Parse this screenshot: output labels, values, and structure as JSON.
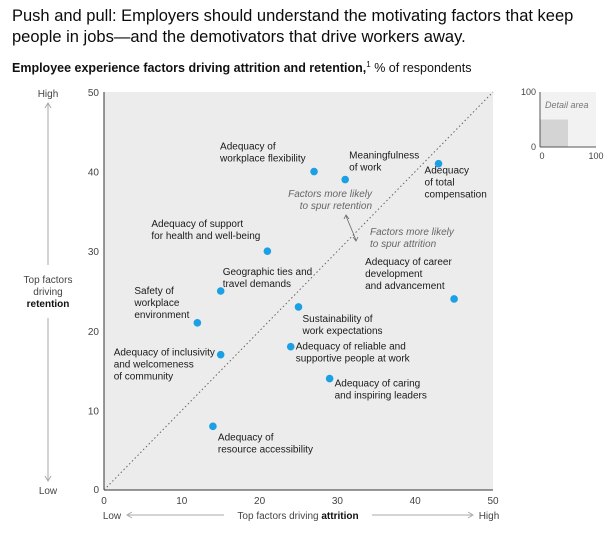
{
  "title": "Push and pull: Employers should understand the motivating factors that keep people in jobs—and the demotivators that drive workers away.",
  "subtitle": {
    "bold": "Employee experience factors driving attrition and retention,",
    "footnote_marker": "1",
    "rest": "% of respondents"
  },
  "colors": {
    "point": "#1ca0e4",
    "plot_bg": "#ececec",
    "detail_bg": "#d4d4d4"
  },
  "chart_data": {
    "type": "scatter",
    "xlim": [
      0,
      50
    ],
    "ylim": [
      0,
      50
    ],
    "x_ticks": [
      0,
      10,
      20,
      30,
      40,
      50
    ],
    "y_ticks": [
      10,
      20,
      30,
      40,
      50
    ],
    "xlabel": {
      "low": "Low",
      "high": "High",
      "pre": "Top factors driving ",
      "bold": "attrition"
    },
    "ylabel": {
      "low": "Low",
      "high": "High",
      "lines": [
        "Top factors",
        "driving"
      ],
      "bold": "retention"
    },
    "diagonal": {
      "from": [
        0,
        0
      ],
      "to": [
        50,
        50
      ],
      "style": "dotted"
    },
    "annotations": {
      "above": [
        "Factors more likely",
        "to spur retention"
      ],
      "below": [
        "Factors more likely",
        "to spur attrition"
      ]
    },
    "points": [
      {
        "x": 27,
        "y": 40,
        "label": [
          "Adequacy of",
          "workplace flexibility"
        ]
      },
      {
        "x": 31,
        "y": 39,
        "label": [
          "Meaningfulness",
          "of work"
        ]
      },
      {
        "x": 43,
        "y": 41,
        "label": [
          "Adequacy",
          "of total",
          "compensation"
        ]
      },
      {
        "x": 21,
        "y": 30,
        "label": [
          "Adequacy of support",
          "for health and well-being"
        ]
      },
      {
        "x": 15,
        "y": 25,
        "label": [
          "Geographic ties and",
          "travel demands"
        ]
      },
      {
        "x": 12,
        "y": 21,
        "label": [
          "Safety of",
          "workplace",
          "environment"
        ]
      },
      {
        "x": 25,
        "y": 23,
        "label": [
          "Sustainability of",
          "work expectations"
        ]
      },
      {
        "x": 45,
        "y": 24,
        "label": [
          "Adequacy of career",
          "development",
          "and advancement"
        ]
      },
      {
        "x": 15,
        "y": 17,
        "label": [
          "Adequacy of inclusivity",
          "and welcomeness",
          "of community"
        ]
      },
      {
        "x": 24,
        "y": 18,
        "label": [
          "Adequacy of reliable and",
          "supportive people at work"
        ]
      },
      {
        "x": 29,
        "y": 14,
        "label": [
          "Adequacy of caring",
          "and inspiring leaders"
        ]
      },
      {
        "x": 14,
        "y": 8,
        "label": [
          "Adequacy of",
          "resource accessibility"
        ]
      }
    ],
    "detail_inset": {
      "title": "Detail area",
      "xlim": [
        0,
        100
      ],
      "ylim": [
        0,
        100
      ],
      "x_ticks": [
        0,
        100
      ],
      "y_ticks": [
        0,
        100
      ],
      "highlight_x": [
        0,
        50
      ],
      "highlight_y": [
        0,
        50
      ]
    }
  }
}
